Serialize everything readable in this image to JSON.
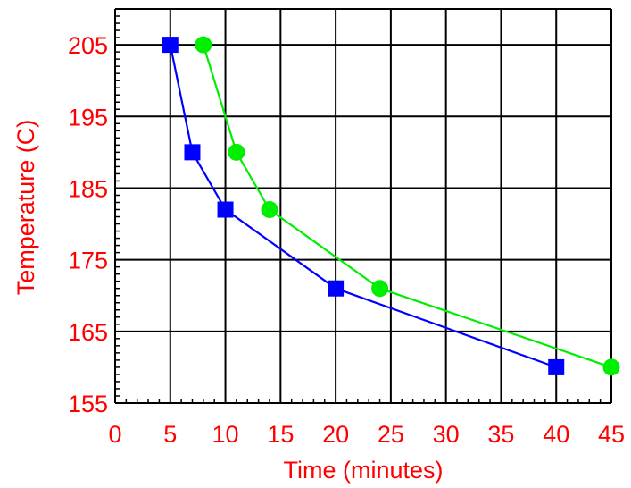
{
  "chart_data": {
    "type": "line",
    "title": "",
    "xlabel": "Time (minutes)",
    "ylabel": "Temperature (C)",
    "xlim": [
      0,
      45
    ],
    "ylim": [
      155,
      210
    ],
    "x_ticks": [
      0,
      5,
      10,
      15,
      20,
      25,
      30,
      35,
      40,
      45
    ],
    "y_ticks": [
      155,
      165,
      175,
      185,
      195,
      205
    ],
    "grid": true,
    "series": [
      {
        "marker": "square",
        "color": "#0000ff",
        "x": [
          5,
          7,
          10,
          20,
          40
        ],
        "y": [
          205,
          190,
          182,
          171,
          160
        ]
      },
      {
        "marker": "circle",
        "color": "#00ee00",
        "x": [
          8,
          11,
          14,
          24,
          45
        ],
        "y": [
          205,
          190,
          182,
          171,
          160
        ]
      }
    ]
  }
}
